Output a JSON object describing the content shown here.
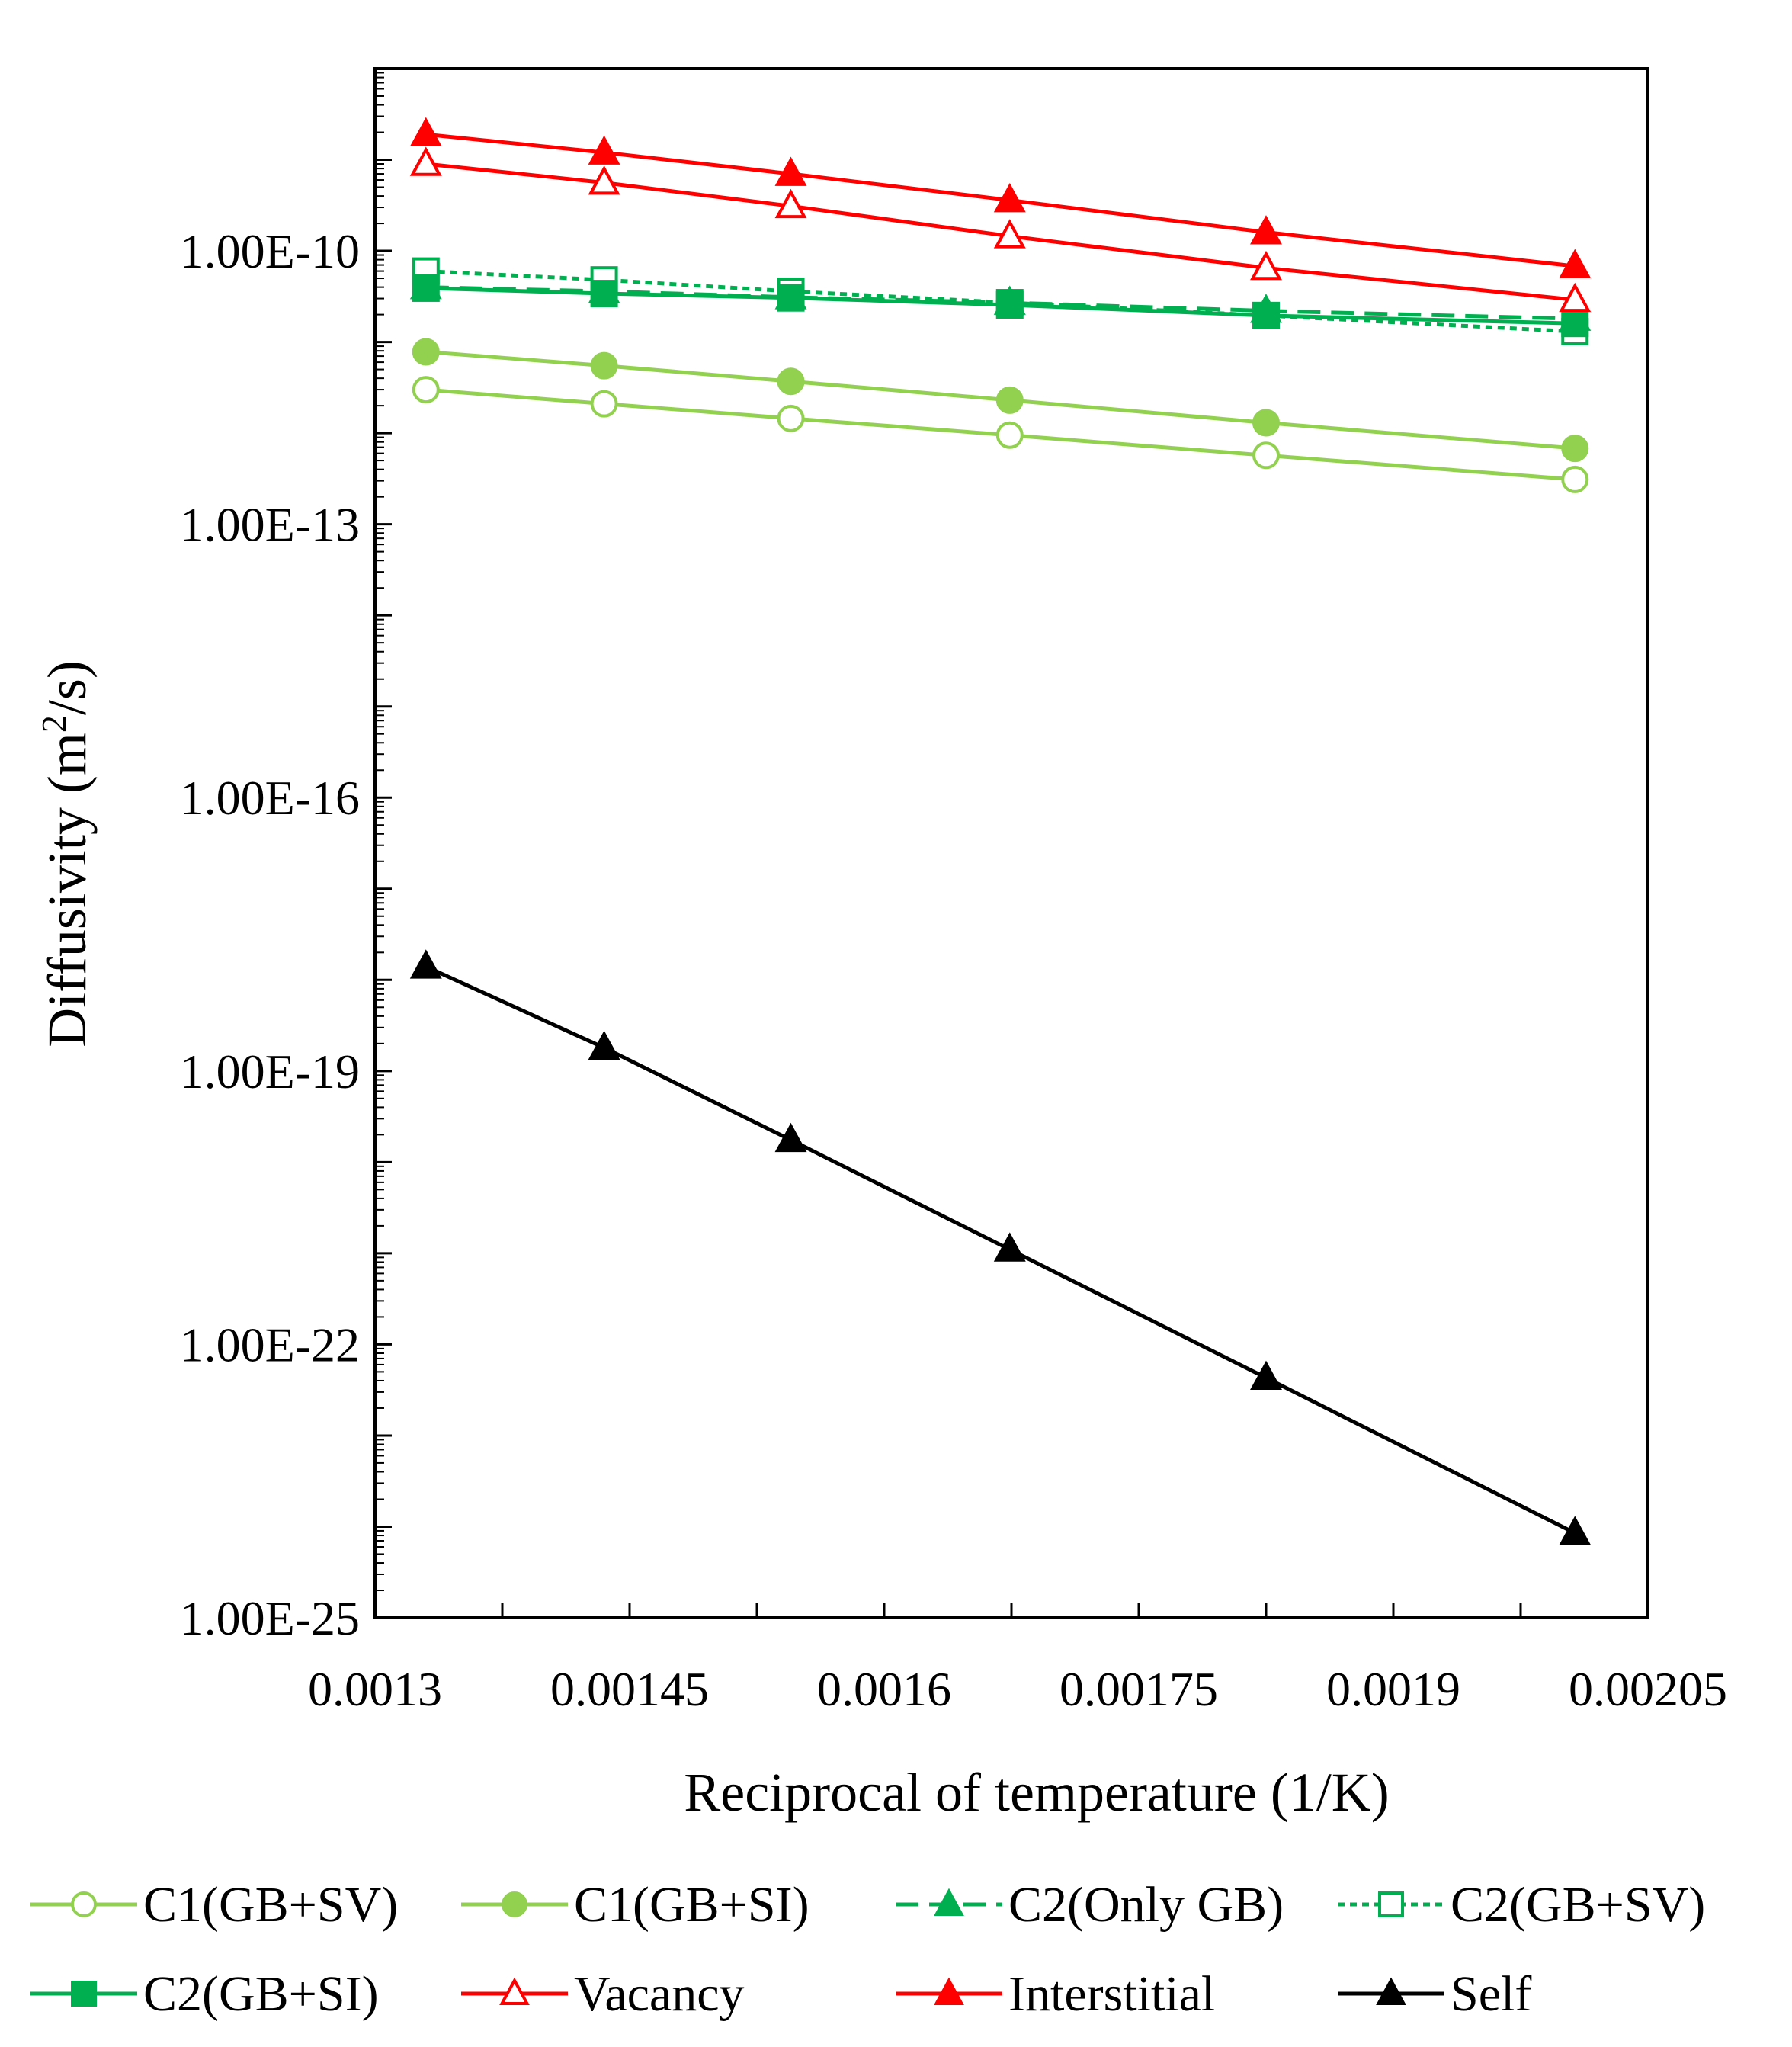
{
  "chart_data": {
    "type": "line",
    "title": "",
    "xlabel": "Reciprocal of temperature (1/K)",
    "ylabel_main": "Diffusivity (m",
    "ylabel_sup": "2",
    "ylabel_tail": "/s)",
    "x_scale": "linear",
    "y_scale": "log",
    "xlim": [
      0.0013,
      0.00205
    ],
    "ylim_exp": [
      -25,
      -8
    ],
    "x_ticks": [
      0.0013,
      0.00145,
      0.0016,
      0.00175,
      0.0019,
      0.00205
    ],
    "x_tick_labels": [
      "0.0013",
      "0.00145",
      "0.0016",
      "0.00175",
      "0.0019",
      "0.00205"
    ],
    "y_tick_exps": [
      -25,
      -22,
      -19,
      -16,
      -13,
      -10
    ],
    "y_tick_labels": [
      "1.00E-25",
      "1.00E-22",
      "1.00E-19",
      "1.00E-16",
      "1.00E-13",
      "1.00E-10"
    ],
    "grid": false,
    "legend_position": "bottom",
    "x": [
      0.00133,
      0.001435,
      0.001545,
      0.001674,
      0.001825,
      0.002007
    ],
    "series": [
      {
        "name": "C1(GB+SV)",
        "color": "#92d050",
        "marker": "circle",
        "filled": false,
        "dash": "solid",
        "values": [
          3e-12,
          2.1e-12,
          1.45e-12,
          9.5e-13,
          5.7e-13,
          3.1e-13
        ]
      },
      {
        "name": "C1(GB+SI)",
        "color": "#92d050",
        "marker": "circle",
        "filled": true,
        "dash": "solid",
        "values": [
          7.8e-12,
          5.5e-12,
          3.7e-12,
          2.3e-12,
          1.3e-12,
          6.8e-13
        ]
      },
      {
        "name": "C2(Only GB)",
        "color": "#00b050",
        "marker": "triangle",
        "filled": true,
        "dash": "longdash",
        "values": [
          4e-11,
          3.6e-11,
          3.1e-11,
          2.7e-11,
          2.2e-11,
          1.8e-11
        ]
      },
      {
        "name": "C2(GB+SV)",
        "color": "#00b050",
        "marker": "square",
        "filled": false,
        "dash": "dotted",
        "values": [
          6e-11,
          4.8e-11,
          3.6e-11,
          2.7e-11,
          1.95e-11,
          1.3e-11
        ]
      },
      {
        "name": "C2(GB+SI)",
        "color": "#00b050",
        "marker": "square",
        "filled": true,
        "dash": "solid",
        "values": [
          3.9e-11,
          3.4e-11,
          3.05e-11,
          2.55e-11,
          1.95e-11,
          1.6e-11
        ]
      },
      {
        "name": "Vacancy",
        "color": "#ff0000",
        "marker": "triangle",
        "filled": false,
        "dash": "solid",
        "values": [
          9e-10,
          5.6e-10,
          3.1e-10,
          1.45e-10,
          6.5e-11,
          2.9e-11
        ]
      },
      {
        "name": "Interstitial",
        "color": "#ff0000",
        "marker": "triangle",
        "filled": true,
        "dash": "solid",
        "values": [
          1.9e-09,
          1.2e-09,
          7e-10,
          3.6e-10,
          1.6e-10,
          6.8e-11
        ]
      },
      {
        "name": "Self",
        "color": "#000000",
        "marker": "triangle",
        "filled": true,
        "dash": "solid",
        "values": [
          1.4e-18,
          1.8e-19,
          1.75e-20,
          1.1e-21,
          4.3e-23,
          8.5e-25
        ]
      }
    ]
  }
}
